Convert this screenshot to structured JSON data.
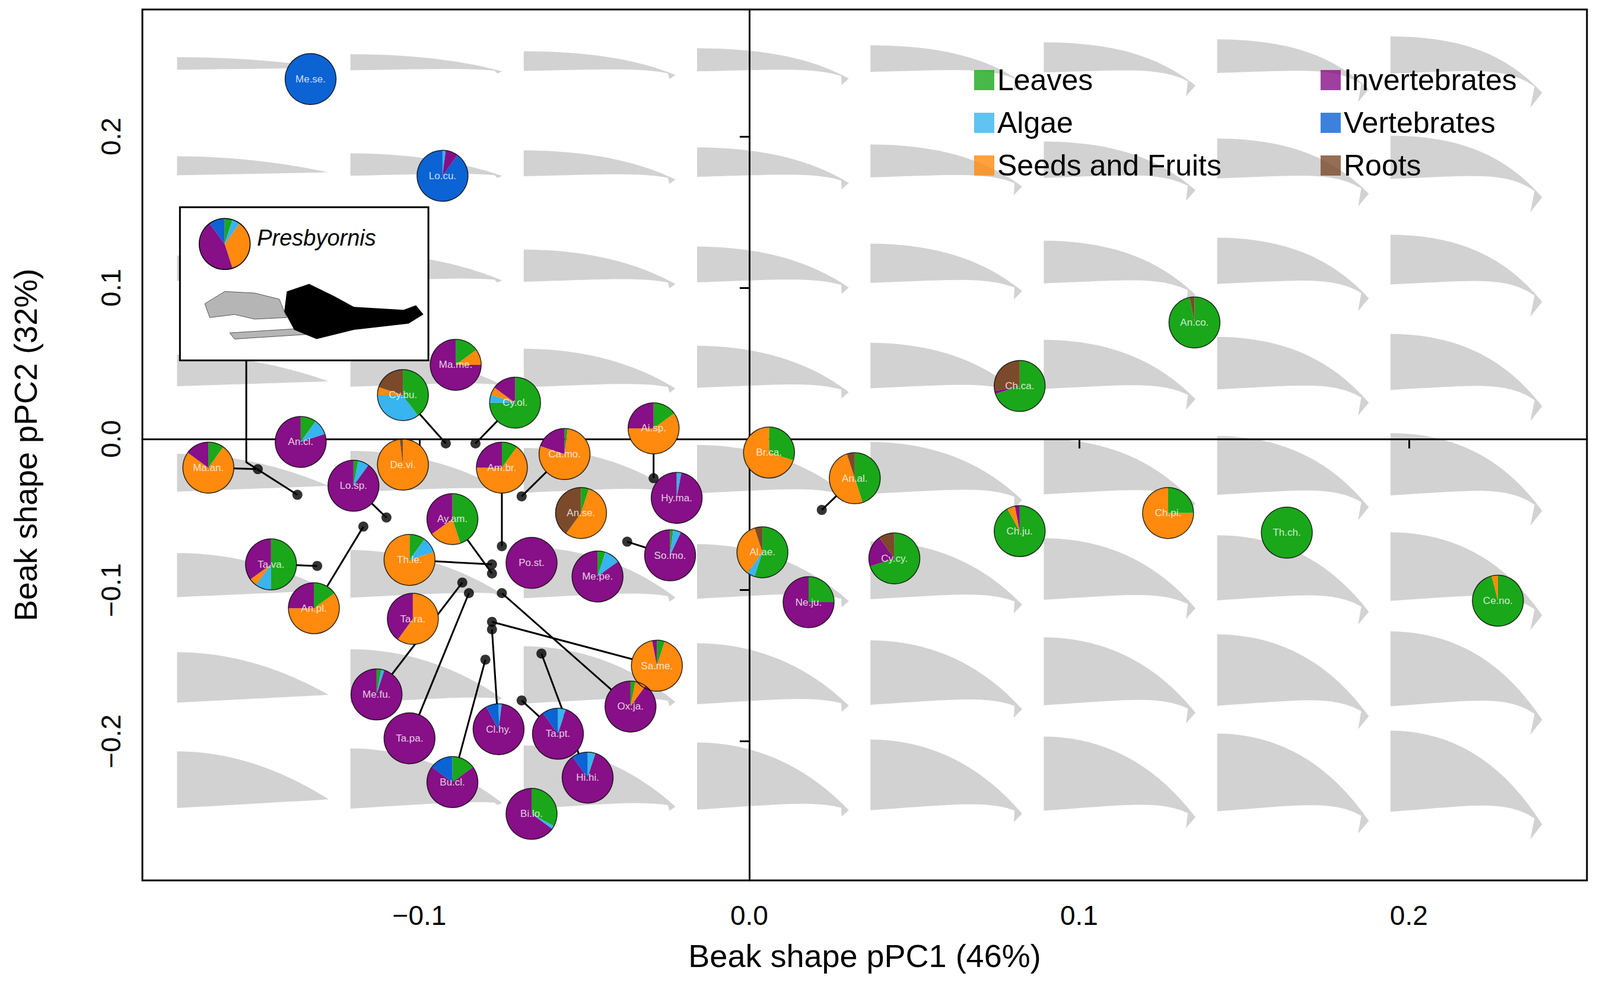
{
  "chart_data": {
    "type": "scatter",
    "x_label": "Beak shape pPC1 (46%)",
    "y_label": "Beak shape pPC2 (32%)",
    "xlim": [
      -0.184,
      0.254
    ],
    "ylim": [
      -0.292,
      0.284
    ],
    "xticks": [
      {
        "value": -0.1,
        "label": "−0.1"
      },
      {
        "value": 0,
        "label": "0.0"
      },
      0.1,
      0.2
    ],
    "yticks": [
      {
        "value": -0.2,
        "label": "−0.2"
      },
      {
        "value": -0.1,
        "label": "−0.1"
      },
      {
        "value": 0,
        "label": "0.0"
      },
      0.1,
      0.2
    ],
    "grid": false,
    "legend": "top right",
    "series": [
      {
        "name": "Leaves",
        "color": "#1aa71a"
      },
      {
        "name": "Algae",
        "color": "#38b4ee"
      },
      {
        "name": "Seeds and Fruits",
        "color": "#ff8a0d"
      },
      {
        "name": "Invertebrates",
        "color": "#870f87"
      },
      {
        "name": "Vertebrates",
        "color": "#0b63d4"
      },
      {
        "name": "Roots",
        "color": "#7b4a2b"
      }
    ],
    "points": [
      {
        "label": "Me.se.",
        "x": -0.133,
        "y": 0.238,
        "values": [
          0,
          0,
          0,
          0,
          100,
          0
        ]
      },
      {
        "label": "Lo.cu.",
        "x": -0.093,
        "y": 0.174,
        "values": [
          0,
          2,
          0,
          8,
          90,
          0
        ]
      },
      {
        "label": "Ma.me.",
        "x": -0.089,
        "y": 0.049,
        "values": [
          15,
          0,
          10,
          75,
          0,
          0
        ]
      },
      {
        "label": "Cy.bu.",
        "x": -0.092,
        "y": -0.003,
        "pie_x": -0.105,
        "pie_y": 0.029,
        "values": [
          40,
          35,
          5,
          0,
          0,
          20
        ]
      },
      {
        "label": "Cy.ol.",
        "x": -0.083,
        "y": -0.003,
        "pie_x": -0.071,
        "pie_y": 0.024,
        "values": [
          75,
          5,
          5,
          15,
          0,
          0
        ]
      },
      {
        "label": "An.cl.",
        "x": -0.136,
        "y": -0.002,
        "values": [
          10,
          10,
          0,
          80,
          0,
          0
        ]
      },
      {
        "label": "Ma.an.",
        "x": -0.149,
        "y": -0.02,
        "pie_x": -0.164,
        "pie_y": -0.019,
        "values": [
          10,
          0,
          75,
          15,
          0,
          0
        ]
      },
      {
        "label": "De.vi.",
        "x": -0.105,
        "y": -0.017,
        "values": [
          0,
          0,
          98,
          0,
          0,
          2
        ]
      },
      {
        "label": "Lo.sp.",
        "x": -0.11,
        "y": -0.052,
        "pie_x": -0.12,
        "pie_y": -0.031,
        "values": [
          3,
          7,
          0,
          90,
          0,
          0
        ]
      },
      {
        "label": "Am.br.",
        "x": -0.075,
        "y": -0.071,
        "pie_x": -0.075,
        "pie_y": -0.019,
        "values": [
          10,
          0,
          65,
          25,
          0,
          0
        ]
      },
      {
        "label": "Ca.mo.",
        "x": -0.069,
        "y": -0.038,
        "pie_x": -0.056,
        "pie_y": -0.01,
        "values": [
          2,
          0,
          78,
          20,
          0,
          0
        ]
      },
      {
        "label": "Ai.sp.",
        "x": -0.029,
        "y": -0.026,
        "pie_x": -0.029,
        "pie_y": 0.007,
        "values": [
          15,
          0,
          60,
          25,
          0,
          0
        ]
      },
      {
        "label": "Hy.ma.",
        "x": -0.022,
        "y": -0.039,
        "values": [
          0,
          3,
          0,
          97,
          0,
          0
        ]
      },
      {
        "label": "An.se.",
        "x": -0.051,
        "y": -0.049,
        "values": [
          5,
          0,
          55,
          0,
          0,
          40
        ]
      },
      {
        "label": "Ay.am.",
        "x": -0.078,
        "y": -0.089,
        "pie_x": -0.09,
        "pie_y": -0.053,
        "values": [
          45,
          0,
          20,
          35,
          0,
          0
        ]
      },
      {
        "label": "So.mo.",
        "x": -0.037,
        "y": -0.068,
        "pie_x": -0.024,
        "pie_y": -0.077,
        "values": [
          2,
          5,
          0,
          93,
          0,
          0
        ]
      },
      {
        "label": "Th.le.",
        "x": -0.078,
        "y": -0.083,
        "pie_x": -0.103,
        "pie_y": -0.08,
        "values": [
          10,
          10,
          80,
          0,
          0,
          0
        ]
      },
      {
        "label": "Po.st.",
        "x": -0.066,
        "y": -0.082,
        "values": [
          0,
          0,
          0,
          100,
          0,
          0
        ]
      },
      {
        "label": "Me.pe.",
        "x": -0.046,
        "y": -0.091,
        "values": [
          5,
          10,
          0,
          85,
          0,
          0
        ]
      },
      {
        "label": "Ta.va.",
        "x": -0.131,
        "y": -0.084,
        "pie_x": -0.145,
        "pie_y": -0.083,
        "values": [
          50,
          10,
          5,
          35,
          0,
          0
        ]
      },
      {
        "label": "An.pl.",
        "x": -0.117,
        "y": -0.058,
        "pie_x": -0.132,
        "pie_y": -0.112,
        "values": [
          15,
          0,
          60,
          25,
          0,
          0
        ]
      },
      {
        "label": "Ta.ra.",
        "x": -0.102,
        "y": -0.119,
        "values": [
          0,
          0,
          60,
          40,
          0,
          0
        ]
      },
      {
        "label": "Me.fu.",
        "x": -0.087,
        "y": -0.095,
        "pie_x": -0.113,
        "pie_y": -0.169,
        "values": [
          3,
          2,
          0,
          95,
          0,
          0
        ]
      },
      {
        "label": "Ta.pa.",
        "x": -0.085,
        "y": -0.102,
        "pie_x": -0.103,
        "pie_y": -0.198,
        "values": [
          0,
          0,
          0,
          100,
          0,
          0
        ]
      },
      {
        "label": "Sa.me.",
        "x": -0.078,
        "y": -0.121,
        "pie_x": -0.028,
        "pie_y": -0.15,
        "values": [
          5,
          0,
          92,
          3,
          0,
          0
        ]
      },
      {
        "label": "Ox.ja.",
        "x": -0.075,
        "y": -0.102,
        "pie_x": -0.036,
        "pie_y": -0.177,
        "values": [
          3,
          0,
          7,
          90,
          0,
          0
        ]
      },
      {
        "label": "Cl.hy.",
        "x": -0.078,
        "y": -0.126,
        "pie_x": -0.076,
        "pie_y": -0.192,
        "values": [
          0,
          2,
          0,
          90,
          8,
          0
        ]
      },
      {
        "label": "Bu.cl.",
        "x": -0.08,
        "y": -0.146,
        "pie_x": -0.09,
        "pie_y": -0.227,
        "values": [
          15,
          0,
          0,
          70,
          15,
          0
        ]
      },
      {
        "label": "Ta.pt.",
        "x": -0.069,
        "y": -0.173,
        "pie_x": -0.058,
        "pie_y": -0.195,
        "values": [
          0,
          5,
          0,
          85,
          10,
          0
        ]
      },
      {
        "label": "Hi.hi.",
        "x": -0.063,
        "y": -0.142,
        "pie_x": -0.049,
        "pie_y": -0.224,
        "values": [
          0,
          5,
          0,
          85,
          10,
          0
        ]
      },
      {
        "label": "Bi.lo.",
        "x": -0.066,
        "y": -0.248,
        "values": [
          33,
          2,
          0,
          65,
          0,
          0
        ]
      },
      {
        "label": "Al.ae.",
        "x": 0.004,
        "y": -0.075,
        "values": [
          55,
          5,
          35,
          0,
          0,
          5
        ]
      },
      {
        "label": "Br.ca.",
        "x": 0.006,
        "y": -0.009,
        "values": [
          30,
          0,
          70,
          0,
          0,
          0
        ]
      },
      {
        "label": "An.al.",
        "x": 0.022,
        "y": -0.047,
        "pie_x": 0.032,
        "pie_y": -0.026,
        "values": [
          45,
          0,
          50,
          0,
          0,
          5
        ]
      },
      {
        "label": "Ne.ju.",
        "x": 0.018,
        "y": -0.108,
        "values": [
          25,
          0,
          0,
          75,
          0,
          0
        ]
      },
      {
        "label": "Cy.cy.",
        "x": 0.044,
        "y": -0.079,
        "values": [
          70,
          0,
          0,
          20,
          0,
          10
        ]
      },
      {
        "label": "Ch.ca.",
        "x": 0.082,
        "y": 0.035,
        "values": [
          70,
          0,
          0,
          2,
          0,
          28
        ]
      },
      {
        "label": "Ch.ju.",
        "x": 0.082,
        "y": -0.061,
        "values": [
          92,
          0,
          5,
          3,
          0,
          0
        ]
      },
      {
        "label": "Ch.pi.",
        "x": 0.127,
        "y": -0.049,
        "values": [
          25,
          0,
          75,
          0,
          0,
          0
        ]
      },
      {
        "label": "An.co.",
        "x": 0.135,
        "y": 0.077,
        "values": [
          97,
          0,
          0,
          0,
          0,
          3
        ]
      },
      {
        "label": "Th.ch.",
        "x": 0.163,
        "y": -0.062,
        "values": [
          100,
          0,
          0,
          0,
          0,
          0
        ]
      },
      {
        "label": "Ce.no.",
        "x": 0.227,
        "y": -0.107,
        "values": [
          96,
          0,
          4,
          0,
          0,
          0
        ]
      }
    ],
    "inset": {
      "label": "Presbyornis",
      "x": -0.137,
      "y": -0.037,
      "values": [
        5,
        5,
        35,
        45,
        10,
        0
      ]
    }
  }
}
